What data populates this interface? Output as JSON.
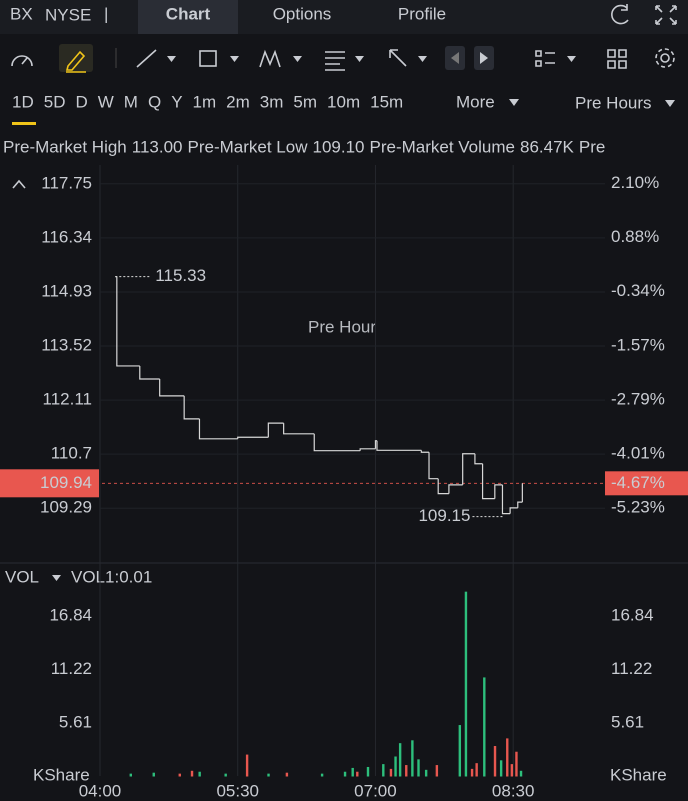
{
  "header": {
    "symbol": "BX",
    "exchange": "NYSE",
    "separator": "|",
    "tabs": [
      "Chart",
      "Options",
      "Profile"
    ]
  },
  "periods": {
    "items": [
      "1D",
      "5D",
      "D",
      "W",
      "M",
      "Q",
      "Y",
      "1m",
      "2m",
      "3m",
      "5m",
      "10m",
      "15m"
    ],
    "more": "More",
    "session": "Pre Hours"
  },
  "stats": [
    {
      "label": "Pre-Market High",
      "value": "113.00"
    },
    {
      "label": "Pre-Market Low",
      "value": "109.10"
    },
    {
      "label": "Pre-Market Volume",
      "value": "86.47K"
    },
    {
      "label": "Pre"
    }
  ],
  "chart_data": [
    {
      "type": "line",
      "watermark": "Pre Hour",
      "step": true,
      "grid": true,
      "x": [
        "04:10",
        "04:11",
        "04:26",
        "04:39",
        "04:55",
        "05:05",
        "05:30",
        "05:50",
        "06:00",
        "06:20",
        "06:50",
        "07:00",
        "07:01",
        "07:30",
        "07:35",
        "07:41",
        "07:48",
        "07:57",
        "08:05",
        "08:10",
        "08:18",
        "08:23",
        "08:28",
        "08:33",
        "08:36"
      ],
      "series": [
        {
          "color": "#d8d8d8",
          "values": [
            115.33,
            113.0,
            112.66,
            112.22,
            111.62,
            111.1,
            111.14,
            111.51,
            111.23,
            110.79,
            110.84,
            111.05,
            110.8,
            110.75,
            110.06,
            109.67,
            109.9,
            110.71,
            110.45,
            109.54,
            109.9,
            109.15,
            109.3,
            109.45,
            109.94
          ]
        }
      ],
      "xlim": [
        "04:00",
        "09:30"
      ],
      "ylim": [
        107.94,
        118.11
      ],
      "yticks": [
        117.75,
        116.34,
        114.93,
        113.52,
        112.11,
        110.7,
        109.29
      ],
      "y2lim": [
        -6.41,
        2.41
      ],
      "y2ticks": [
        {
          "value": 2.1,
          "label": "2.10%"
        },
        {
          "value": 0.88,
          "label": "0.88%"
        },
        {
          "value": -0.34,
          "label": "-0.34%"
        },
        {
          "value": -1.57,
          "label": "-1.57%"
        },
        {
          "value": -2.79,
          "label": "-2.79%"
        },
        {
          "value": -4.01,
          "label": "-4.01%"
        },
        {
          "value": -5.23,
          "label": "-5.23%"
        }
      ],
      "up_color": "#2dbf7c",
      "down_color": "#e8574f",
      "last_price": 109.94,
      "last_change": "-4.67%"
    },
    {
      "type": "bar",
      "indicator": "VOL",
      "params": "VOL1:0.01",
      "unit": "KShare",
      "x": [
        "04:20",
        "04:35",
        "04:52",
        "05:00",
        "05:05",
        "05:22",
        "05:36",
        "05:50",
        "06:02",
        "06:25",
        "06:40",
        "06:45",
        "06:48",
        "06:55",
        "07:05",
        "07:10",
        "07:13",
        "07:16",
        "07:20",
        "07:24",
        "07:28",
        "07:33",
        "07:40",
        "07:55",
        "07:59",
        "08:03",
        "08:06",
        "08:11",
        "08:18",
        "08:22",
        "08:26",
        "08:29",
        "08:32",
        "08:35"
      ],
      "values": [
        0.3,
        0.4,
        0.3,
        0.6,
        0.5,
        0.3,
        2.3,
        0.3,
        0.4,
        0.3,
        0.5,
        0.9,
        0.5,
        1.0,
        1.3,
        0.8,
        2.1,
        3.5,
        1.2,
        3.8,
        1.8,
        0.7,
        1.2,
        5.4,
        19.4,
        0.8,
        1.4,
        10.4,
        3.2,
        1.7,
        4.0,
        1.3,
        2.6,
        0.6
      ],
      "colors": [
        "#2dbf7c",
        "#2dbf7c",
        "#e8574f",
        "#e8574f",
        "#2dbf7c",
        "#2dbf7c",
        "#e8574f",
        "#2dbf7c",
        "#e8574f",
        "#2dbf7c",
        "#2dbf7c",
        "#2dbf7c",
        "#e8574f",
        "#2dbf7c",
        "#2dbf7c",
        "#e8574f",
        "#2dbf7c",
        "#2dbf7c",
        "#e8574f",
        "#2dbf7c",
        "#2dbf7c",
        "#2dbf7c",
        "#e8574f",
        "#2dbf7c",
        "#2dbf7c",
        "#e8574f",
        "#e8574f",
        "#2dbf7c",
        "#e8574f",
        "#2dbf7c",
        "#e8574f",
        "#e8574f",
        "#e8574f",
        "#2dbf7c"
      ],
      "xlim": [
        "04:00",
        "09:30"
      ],
      "xticks": [
        "04:00",
        "05:30",
        "07:00",
        "08:30"
      ],
      "ylim": [
        0,
        22.2
      ],
      "yticks": [
        16.84,
        11.22,
        5.61
      ]
    }
  ]
}
